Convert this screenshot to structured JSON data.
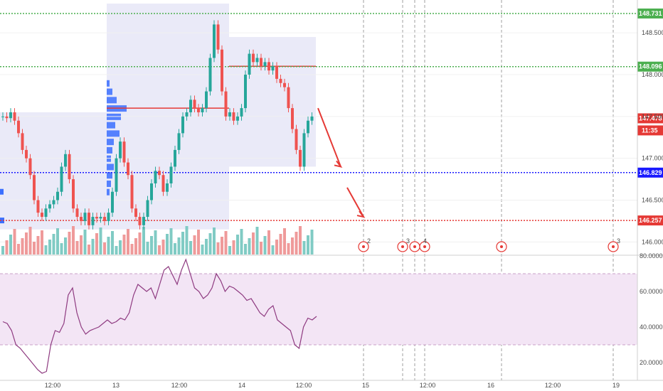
{
  "chart_data": [
    {
      "type": "candlestick",
      "title": "",
      "ylim": [
        145.85,
        148.85
      ],
      "price_levels": [
        {
          "label": "148.731",
          "value": 148.731,
          "color": "#4caf50",
          "style": "dotted"
        },
        {
          "label": "148.096",
          "value": 148.096,
          "color": "#4caf50",
          "style": "dotted"
        },
        {
          "label": "147.478",
          "value": 147.478,
          "color": "#e53935",
          "style": "tag"
        },
        {
          "label": "146.829",
          "value": 146.829,
          "color": "#1a1aff",
          "style": "dotted"
        },
        {
          "label": "146.257",
          "value": 146.257,
          "color": "#e53935",
          "style": "dotted"
        }
      ],
      "countdown": "11:35",
      "price_ticks": [
        {
          "label": "148.500",
          "value": 148.5
        },
        {
          "label": "148.000",
          "value": 148.0
        },
        {
          "label": "147.500",
          "value": 147.5
        },
        {
          "label": "147.000",
          "value": 147.0
        },
        {
          "label": "146.500",
          "value": 146.5
        },
        {
          "label": "146.000",
          "value": 146.0
        }
      ],
      "time_ticks": [
        "12:00",
        "13",
        "12:00",
        "14",
        "12:00",
        "15",
        "12:00",
        "16",
        "12:00",
        "19"
      ],
      "colors": {
        "up": "#26a69a",
        "down": "#ef5350",
        "volume_up": "#80cbc4",
        "volume_down": "#ef9a9a",
        "profile_zone": "#eaeaf8",
        "poc_line": "#e53935",
        "arrow": "#e53935"
      },
      "profile_poc": [
        147.6,
        148.1
      ],
      "event_markers": [
        {
          "date": "15",
          "count": "2"
        },
        {
          "date": "15 (late)",
          "count": "3"
        },
        {
          "date": "15 12:00",
          "count": "4"
        },
        {
          "date": "16",
          "count": ""
        },
        {
          "date": "19",
          "count": "3"
        }
      ],
      "closes": [
        147.5,
        147.48,
        147.55,
        147.45,
        147.3,
        147.1,
        147.0,
        146.8,
        146.5,
        146.35,
        146.3,
        146.4,
        146.45,
        146.5,
        146.6,
        146.9,
        147.05,
        146.75,
        146.4,
        146.3,
        146.25,
        146.35,
        146.2,
        146.3,
        146.28,
        146.3,
        146.25,
        146.35,
        146.6,
        147.0,
        147.2,
        146.95,
        146.8,
        146.4,
        146.3,
        146.2,
        146.3,
        146.5,
        146.7,
        146.85,
        146.8,
        146.6,
        146.7,
        146.9,
        147.1,
        147.3,
        147.5,
        147.55,
        147.7,
        147.6,
        147.55,
        147.6,
        147.8,
        148.2,
        148.6,
        148.3,
        147.8,
        147.5,
        147.55,
        147.45,
        147.5,
        147.6,
        148.0,
        148.25,
        148.15,
        148.2,
        148.1,
        148.15,
        148.05,
        148.1,
        147.95,
        147.9,
        147.85,
        147.6,
        147.35,
        147.1,
        146.9,
        147.3,
        147.45,
        147.5
      ]
    },
    {
      "type": "line",
      "ylim": [
        10,
        80
      ],
      "indicator_ticks": [
        {
          "label": "80.0000",
          "value": 80
        },
        {
          "label": "60.0000",
          "value": 60
        },
        {
          "label": "40.0000",
          "value": 40
        },
        {
          "label": "20.0000",
          "value": 20
        }
      ],
      "bands": [
        70,
        30
      ],
      "color": "#8e3a80",
      "band_color": "#f3e5f5",
      "values": [
        43,
        42,
        38,
        30,
        28,
        25,
        22,
        19,
        16,
        14,
        15,
        30,
        38,
        37,
        42,
        58,
        62,
        48,
        40,
        36,
        38,
        39,
        40,
        42,
        44,
        42,
        43,
        45,
        44,
        48,
        58,
        64,
        62,
        60,
        62,
        56,
        64,
        72,
        74,
        69,
        64,
        72,
        78,
        70,
        62,
        60,
        56,
        58,
        62,
        70,
        66,
        60,
        63,
        62,
        60,
        58,
        55,
        56,
        52,
        48,
        46,
        50,
        52,
        44,
        42,
        40,
        38,
        30,
        28,
        40,
        45,
        44,
        46
      ]
    }
  ]
}
